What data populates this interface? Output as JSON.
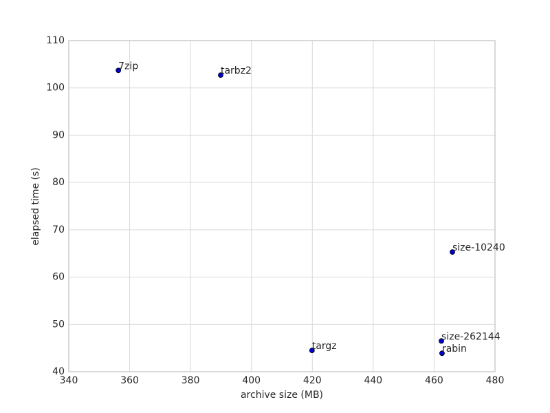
{
  "chart_data": {
    "type": "scatter",
    "xlabel": "archive size (MB)",
    "ylabel": "elapsed time (s)",
    "labels": [
      "7zip",
      "tarbz2",
      "targz",
      "size-10240",
      "size-262144",
      "rabin"
    ],
    "x": [
      356.3,
      389.9,
      419.9,
      466.0,
      462.4,
      462.6
    ],
    "values": [
      103.7,
      102.7,
      44.5,
      65.3,
      46.5,
      43.9
    ],
    "color": "#0000cc",
    "xlim": [
      340,
      480
    ],
    "xticks": [
      340,
      360,
      380,
      400,
      420,
      440,
      460,
      480
    ],
    "ylim": [
      40,
      110
    ],
    "yticks": [
      40,
      50,
      60,
      70,
      80,
      90,
      100,
      110
    ],
    "grid": true
  }
}
